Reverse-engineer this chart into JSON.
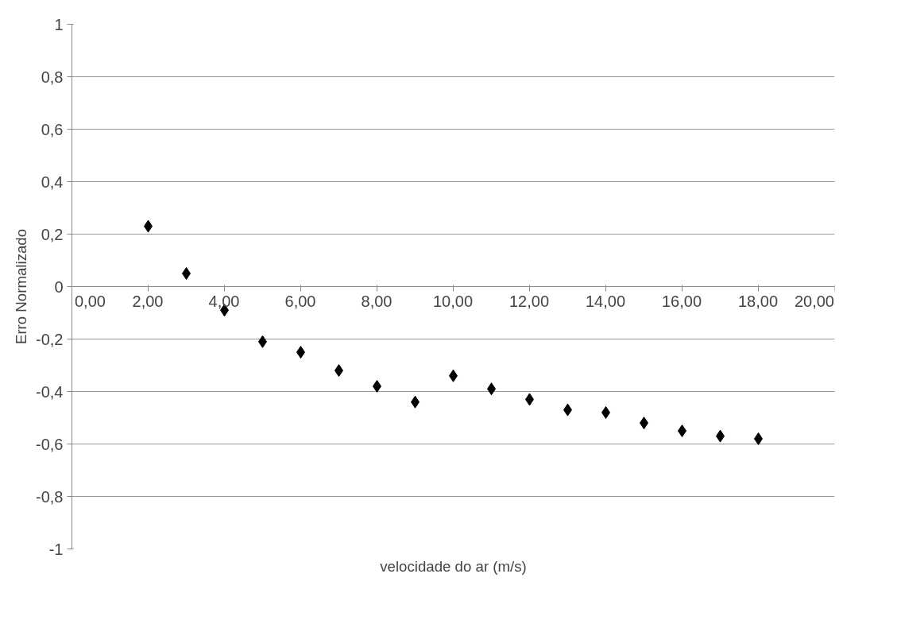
{
  "chart_data": {
    "type": "scatter",
    "xlabel": "velocidade do ar (m/s)",
    "ylabel": "Erro Normalizado",
    "x": [
      2,
      3,
      4,
      5,
      6,
      7,
      8,
      9,
      10,
      11,
      12,
      13,
      14,
      15,
      16,
      17,
      18
    ],
    "series": [
      {
        "color": "#000000",
        "values": [
          0.23,
          0.05,
          -0.09,
          -0.21,
          -0.25,
          -0.32,
          -0.38,
          -0.44,
          -0.34,
          -0.39,
          -0.43,
          -0.47,
          -0.48,
          -0.52,
          -0.55,
          -0.57,
          -0.58
        ]
      }
    ],
    "xlim": [
      0,
      20
    ],
    "xticks": [
      {
        "value": 0,
        "label": "0,00"
      },
      {
        "value": 2,
        "label": "2,00"
      },
      {
        "value": 4,
        "label": "4,00"
      },
      {
        "value": 6,
        "label": "6,00"
      },
      {
        "value": 8,
        "label": "8,00"
      },
      {
        "value": 10,
        "label": "10,00"
      },
      {
        "value": 12,
        "label": "12,00"
      },
      {
        "value": 14,
        "label": "14,00"
      },
      {
        "value": 16,
        "label": "16,00"
      },
      {
        "value": 18,
        "label": "18,00"
      },
      {
        "value": 20,
        "label": "20,00"
      }
    ],
    "ylim": [
      -1,
      1
    ],
    "yticks": [
      -1,
      {
        "value": -0.8,
        "label": "-0,8"
      },
      {
        "value": -0.6,
        "label": "-0,6"
      },
      {
        "value": -0.4,
        "label": "-0,4"
      },
      {
        "value": -0.2,
        "label": "-0,2"
      },
      0,
      {
        "value": 0.2,
        "label": "0,2"
      },
      {
        "value": 0.4,
        "label": "0,4"
      },
      {
        "value": 0.6,
        "label": "0,6"
      },
      {
        "value": 0.8,
        "label": "0,8"
      },
      1
    ],
    "grid": "y",
    "marker": "diamond"
  }
}
